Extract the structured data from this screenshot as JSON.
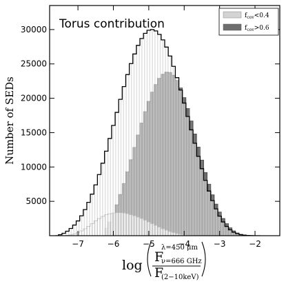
{
  "chart_data": {
    "type": "histogram",
    "title": "Torus contribution",
    "ylabel": "Number of SEDs",
    "xlabel": {
      "prefix": "log",
      "numerator_main": "F",
      "numerator_sup": "λ=450 μm",
      "numerator_sub": "ν=666 GHz",
      "denominator_main": "F",
      "denominator_sub": "(2−10keV)"
    },
    "xlim": [
      -7.8,
      -1.3
    ],
    "ylim": [
      0,
      33500
    ],
    "xticks": [
      -7,
      -6,
      -5,
      -4,
      -3,
      -2
    ],
    "xtick_labels": [
      "−7",
      "−6",
      "−5",
      "−4",
      "−3",
      "−2"
    ],
    "yticks": [
      5000,
      10000,
      15000,
      20000,
      25000,
      30000
    ],
    "ytick_labels": [
      "5000",
      "10000",
      "15000",
      "20000",
      "25000",
      "30000"
    ],
    "legend": {
      "placement": "top-right",
      "entries": [
        {
          "main": "f",
          "sub": "cov",
          "rest": "<0.4",
          "color": "#d3d3d3"
        },
        {
          "main": "f",
          "sub": "cov",
          "rest": ">0.6",
          "color": "#6e6e6e"
        }
      ]
    },
    "bin_width": 0.1,
    "series": [
      {
        "name": "total",
        "style": "step",
        "color": "#000000",
        "x": [
          -7.6,
          -7.5,
          -7.4,
          -7.3,
          -7.2,
          -7.1,
          -7.0,
          -6.9,
          -6.8,
          -6.7,
          -6.6,
          -6.5,
          -6.4,
          -6.3,
          -6.2,
          -6.1,
          -6.0,
          -5.9,
          -5.8,
          -5.7,
          -5.6,
          -5.5,
          -5.4,
          -5.3,
          -5.2,
          -5.1,
          -5.0,
          -4.9,
          -4.8,
          -4.7,
          -4.6,
          -4.5,
          -4.4,
          -4.3,
          -4.2,
          -4.1,
          -4.0,
          -3.9,
          -3.8,
          -3.7,
          -3.6,
          -3.5,
          -3.4,
          -3.3,
          -3.2,
          -3.1,
          -3.0,
          -2.9,
          -2.8,
          -2.7,
          -2.6,
          -2.5,
          -2.4,
          -2.3,
          -2.2,
          -2.1,
          -2.0,
          -1.9
        ],
        "values": [
          0,
          150,
          350,
          650,
          1050,
          1550,
          2150,
          2900,
          3800,
          4850,
          6050,
          7400,
          8900,
          10550,
          12300,
          14150,
          16050,
          17950,
          19850,
          21700,
          23450,
          25050,
          26450,
          27700,
          28700,
          29450,
          29900,
          30000,
          29800,
          29300,
          28500,
          27450,
          26150,
          24650,
          23000,
          21200,
          19300,
          17350,
          15400,
          13450,
          11550,
          9750,
          8050,
          6500,
          5100,
          3900,
          2850,
          2000,
          1350,
          850,
          500,
          300,
          150,
          80,
          30,
          10,
          0,
          0
        ]
      },
      {
        "name": "f_cov > 0.6",
        "style": "filled",
        "color": "#6e6e6e",
        "x": [
          -6.2,
          -6.1,
          -6.0,
          -5.9,
          -5.8,
          -5.7,
          -5.6,
          -5.5,
          -5.4,
          -5.3,
          -5.2,
          -5.1,
          -5.0,
          -4.9,
          -4.8,
          -4.7,
          -4.6,
          -4.5,
          -4.4,
          -4.3,
          -4.2,
          -4.1,
          -4.0,
          -3.9,
          -3.8,
          -3.7,
          -3.6,
          -3.5,
          -3.4,
          -3.3,
          -3.2,
          -3.1,
          -3.0,
          -2.9,
          -2.8,
          -2.7,
          -2.6,
          -2.5,
          -2.4,
          -2.3,
          -2.2,
          -2.1,
          -2.0,
          -1.9
        ],
        "values": [
          1100,
          2000,
          3200,
          4500,
          6000,
          7600,
          9300,
          11050,
          12850,
          14650,
          16400,
          18050,
          19550,
          20900,
          22000,
          22900,
          23500,
          23800,
          23750,
          23350,
          22600,
          21500,
          20100,
          18500,
          16700,
          14800,
          12900,
          11000,
          9200,
          7500,
          5950,
          4600,
          3450,
          2500,
          1750,
          1150,
          700,
          400,
          200,
          100,
          50,
          20,
          0,
          0
        ]
      },
      {
        "name": "f_cov < 0.4",
        "style": "filled-light",
        "color": "#d3d3d3",
        "x": [
          -7.3,
          -7.2,
          -7.1,
          -7.0,
          -6.9,
          -6.8,
          -6.7,
          -6.6,
          -6.5,
          -6.4,
          -6.3,
          -6.2,
          -6.1,
          -6.0,
          -5.9,
          -5.8,
          -5.7,
          -5.6,
          -5.5,
          -5.4,
          -5.3,
          -5.2,
          -5.1,
          -5.0,
          -4.9,
          -4.8,
          -4.7,
          -4.6,
          -4.5,
          -4.4,
          -4.3,
          -4.2,
          -4.1,
          -4.0,
          -3.9,
          -3.8,
          -3.7
        ],
        "values": [
          50,
          120,
          250,
          450,
          700,
          1000,
          1350,
          1750,
          2150,
          2500,
          2800,
          3050,
          3200,
          3300,
          3350,
          3350,
          3300,
          3200,
          3050,
          2900,
          2700,
          2500,
          2250,
          2000,
          1750,
          1500,
          1250,
          1000,
          800,
          600,
          450,
          300,
          200,
          120,
          60,
          30,
          0
        ]
      }
    ]
  }
}
